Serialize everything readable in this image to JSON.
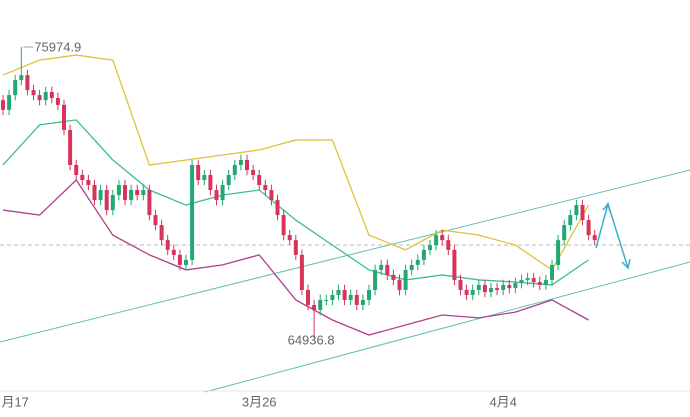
{
  "chart_data": {
    "type": "candlestick",
    "categories": [
      null,
      null,
      "月17",
      null,
      null,
      null,
      null,
      null,
      null,
      null,
      null,
      null,
      null,
      null,
      null,
      null,
      null,
      null,
      null,
      null,
      null,
      null,
      null,
      null,
      null,
      null,
      null,
      null,
      null,
      null,
      null,
      null,
      null,
      null,
      null,
      null,
      null,
      null,
      null,
      null,
      null,
      null,
      "3月26",
      null,
      null,
      null,
      null,
      null,
      null,
      null,
      null,
      null,
      null,
      null,
      null,
      null,
      null,
      null,
      null,
      null,
      null,
      null,
      null,
      null,
      null,
      null,
      null,
      null,
      null,
      null,
      null,
      null,
      null,
      null,
      null,
      null,
      null,
      null,
      null,
      null,
      null,
      null,
      "4月4",
      null,
      null,
      null,
      null,
      null,
      null,
      null,
      null,
      null,
      null,
      null,
      null,
      null,
      null,
      null
    ],
    "open": [
      73960,
      73590,
      74150,
      74720,
      74910,
      74340,
      74150,
      73960,
      74270,
      74040,
      73780,
      72830,
      71500,
      71120,
      70930,
      70740,
      70170,
      70550,
      69790,
      70360,
      70740,
      70170,
      70550,
      70360,
      70550,
      69600,
      69220,
      68650,
      68280,
      68090,
      67710,
      67900,
      71500,
      70930,
      71120,
      70550,
      70170,
      70740,
      71120,
      71500,
      71690,
      71310,
      71120,
      70740,
      70550,
      70170,
      69600,
      68840,
      68650,
      68090,
      66760,
      66190,
      66000,
      66380,
      66380,
      66570,
      66760,
      66380,
      66570,
      66190,
      66380,
      66760,
      67520,
      67710,
      67330,
      67140,
      66760,
      67520,
      67710,
      67900,
      68280,
      68460,
      68840,
      68650,
      68280,
      67140,
      66760,
      66570,
      66760,
      66950,
      66680,
      66830,
      66760,
      66950,
      66830,
      67020,
      67140,
      67210,
      67060,
      66950,
      67140,
      67710,
      68650,
      69220,
      69600,
      69980,
      69410,
      68840
    ],
    "high": [
      74160,
      74350,
      74920,
      75974.9,
      75110,
      74540,
      74350,
      74470,
      74470,
      74240,
      73980,
      73030,
      71700,
      71320,
      71130,
      70940,
      70750,
      70750,
      70560,
      70940,
      70940,
      70750,
      70750,
      70750,
      70750,
      69800,
      69420,
      68850,
      68480,
      68290,
      68100,
      71700,
      71700,
      71320,
      71320,
      70750,
      70940,
      71320,
      71700,
      71890,
      71890,
      71510,
      71320,
      70940,
      70750,
      70370,
      69800,
      69040,
      68850,
      68290,
      66960,
      66390,
      66580,
      66580,
      66770,
      66960,
      66960,
      66770,
      66770,
      66580,
      66960,
      67720,
      67910,
      67910,
      67530,
      67340,
      67720,
      67910,
      68100,
      68480,
      68660,
      69040,
      69040,
      68850,
      68480,
      67340,
      66960,
      66960,
      67150,
      67150,
      67030,
      67030,
      67150,
      67150,
      67220,
      67340,
      67410,
      67410,
      67260,
      67340,
      67910,
      68850,
      69420,
      69800,
      70180,
      70180,
      69610,
      69040
    ],
    "low": [
      73390,
      73390,
      73950,
      74520,
      74140,
      73950,
      73760,
      73760,
      73840,
      73580,
      72630,
      71300,
      70920,
      70730,
      70540,
      69970,
      69970,
      69590,
      69590,
      70160,
      69970,
      69970,
      70160,
      70160,
      69400,
      69020,
      68450,
      68080,
      67890,
      67510,
      67510,
      67700,
      70730,
      70730,
      70350,
      69970,
      69970,
      70540,
      70920,
      71300,
      71110,
      70920,
      70540,
      70350,
      69970,
      69400,
      68640,
      68450,
      67890,
      66560,
      65990,
      64936.8,
      65800,
      66180,
      66180,
      66370,
      66180,
      66180,
      65990,
      65990,
      66180,
      66560,
      67320,
      67130,
      66940,
      66560,
      66560,
      67320,
      67510,
      67700,
      68080,
      68260,
      68450,
      68080,
      66940,
      66560,
      66370,
      66370,
      66560,
      66480,
      66480,
      66560,
      66560,
      66630,
      66630,
      66820,
      66940,
      66860,
      66750,
      66750,
      66940,
      67510,
      68450,
      69020,
      69400,
      69210,
      68640,
      68450
    ],
    "close": [
      73590,
      74150,
      74720,
      74910,
      74340,
      74150,
      73960,
      74270,
      74040,
      73780,
      72830,
      71500,
      71120,
      70930,
      70740,
      70170,
      70550,
      69790,
      70360,
      70740,
      70170,
      70550,
      70360,
      70550,
      69600,
      69220,
      68650,
      68280,
      68090,
      67710,
      67900,
      71500,
      70930,
      71120,
      70550,
      70170,
      70740,
      71120,
      71500,
      71690,
      71310,
      71120,
      70740,
      70550,
      70170,
      69600,
      68840,
      68650,
      68090,
      66760,
      66190,
      66000,
      66380,
      66380,
      66570,
      66760,
      66380,
      66570,
      66190,
      66380,
      66760,
      67520,
      67710,
      67330,
      67140,
      66760,
      67520,
      67710,
      67900,
      68280,
      68460,
      68840,
      68650,
      68280,
      67140,
      66760,
      66570,
      66760,
      66950,
      66680,
      66830,
      66760,
      66950,
      66830,
      67020,
      67140,
      67210,
      67060,
      66950,
      67140,
      67710,
      68650,
      69220,
      69600,
      69980,
      69410,
      68840,
      68650
    ],
    "up_color": "#22a870",
    "down_color": "#d6345a",
    "bands": [
      {
        "color": "#e0c23a",
        "x": [
          0,
          6,
          12,
          18,
          24,
          30,
          36,
          42,
          48,
          54,
          60,
          66,
          72,
          78,
          84,
          90,
          96
        ],
        "values": [
          74910,
          75480,
          75670,
          75480,
          71500,
          71690,
          71880,
          72070,
          72450,
          72450,
          68840,
          68280,
          69030,
          68840,
          68460,
          67520,
          69980
        ]
      },
      {
        "color": "#3cc08a",
        "x": [
          0,
          6,
          12,
          18,
          24,
          30,
          36,
          42,
          48,
          54,
          60,
          66,
          72,
          78,
          84,
          90,
          96
        ],
        "values": [
          71500,
          73020,
          73210,
          71690,
          70550,
          69980,
          70360,
          70550,
          69410,
          68460,
          67520,
          67140,
          67330,
          67140,
          67060,
          66950,
          67900
        ]
      },
      {
        "color": "#b0408a",
        "x": [
          0,
          6,
          12,
          18,
          24,
          30,
          36,
          42,
          48,
          54,
          60,
          66,
          72,
          78,
          84,
          90,
          96
        ],
        "values": [
          69790,
          69600,
          70930,
          68840,
          68090,
          67520,
          67710,
          68090,
          66380,
          65620,
          65050,
          65430,
          65810,
          65700,
          65920,
          66380,
          65620
        ]
      }
    ],
    "ylim": [
      62965,
      77758
    ]
  }
}
